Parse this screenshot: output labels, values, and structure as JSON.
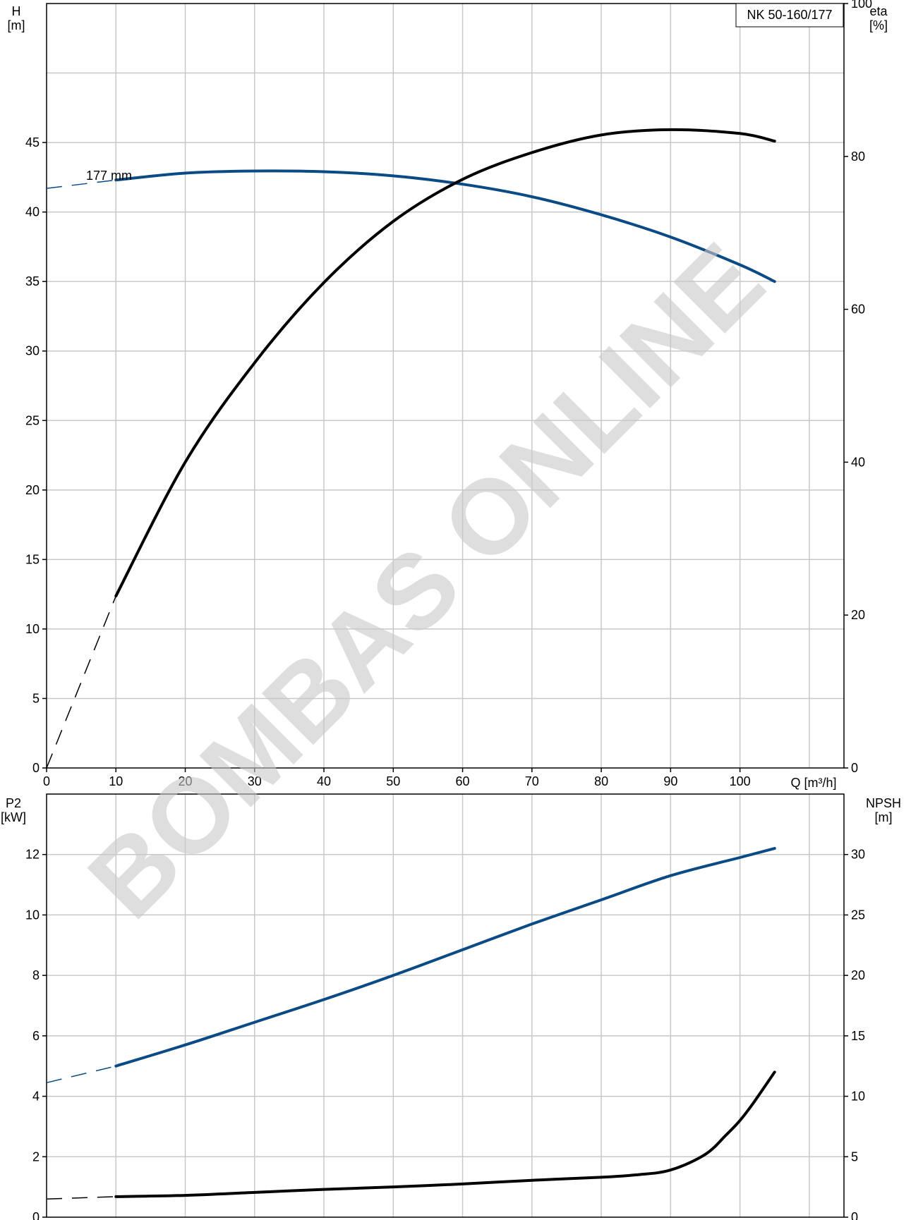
{
  "chart_data": [
    {
      "type": "line",
      "title": "NK 50-160/177",
      "xlabel": "Q [m³/h]",
      "ylabel_left_name": "H",
      "ylabel_left_unit": "[m]",
      "ylabel_right_name": "eta",
      "ylabel_right_unit": "[%]",
      "xlim": [
        0,
        115
      ],
      "ylim_left": [
        0,
        55
      ],
      "ylim_right": [
        0,
        100
      ],
      "x_ticks": [
        0,
        10,
        20,
        30,
        40,
        50,
        60,
        70,
        80,
        90,
        100
      ],
      "x_tick_labels": [
        "0",
        "10",
        "20",
        "30",
        "40",
        "50",
        "60",
        "70",
        "80",
        "90",
        "100"
      ],
      "y_left_ticks": [
        0,
        5,
        10,
        15,
        20,
        25,
        30,
        35,
        40,
        45
      ],
      "y_left_tick_labels": [
        "0",
        "5",
        "10",
        "15",
        "20",
        "25",
        "30",
        "35",
        "40",
        "45"
      ],
      "y_right_ticks": [
        0,
        20,
        40,
        60,
        80,
        100
      ],
      "y_right_tick_labels": [
        "0",
        "20",
        "40",
        "60",
        "80",
        "100"
      ],
      "grid": true,
      "annotation": "177 mm",
      "series": [
        {
          "axis": "left",
          "color": "#0a4a85",
          "x": [
            10,
            20,
            30,
            40,
            50,
            60,
            70,
            80,
            90,
            100,
            105
          ],
          "values": [
            42.3,
            42.8,
            42.95,
            42.9,
            42.6,
            42.0,
            41.1,
            39.8,
            38.2,
            36.2,
            35.0
          ],
          "extrapolated": {
            "x": [
              0,
              10
            ],
            "values": [
              41.7,
              42.3
            ]
          }
        },
        {
          "axis": "right",
          "color": "#000000",
          "x": [
            10,
            20,
            30,
            40,
            50,
            60,
            70,
            80,
            90,
            100,
            105
          ],
          "values": [
            22.5,
            40.0,
            53.0,
            63.5,
            71.5,
            77.0,
            80.5,
            82.8,
            83.5,
            83.0,
            82.0
          ],
          "extrapolated": {
            "x": [
              0,
              10
            ],
            "values": [
              0,
              22.5
            ]
          }
        }
      ]
    },
    {
      "type": "line",
      "ylabel_left_name": "P2",
      "ylabel_left_unit": "[kW]",
      "ylabel_right_name": "NPSH",
      "ylabel_right_unit": "[m]",
      "xlim": [
        0,
        115
      ],
      "ylim_left": [
        0,
        14
      ],
      "ylim_right": [
        0,
        35
      ],
      "y_left_ticks": [
        0,
        2,
        4,
        6,
        8,
        10,
        12
      ],
      "y_left_tick_labels": [
        "0",
        "2",
        "4",
        "6",
        "8",
        "10",
        "12"
      ],
      "y_right_ticks": [
        0,
        5,
        10,
        15,
        20,
        25,
        30
      ],
      "y_right_tick_labels": [
        "0",
        "5",
        "10",
        "15",
        "20",
        "25",
        "30"
      ],
      "grid": true,
      "series": [
        {
          "axis": "left",
          "color": "#0a4a85",
          "x": [
            10,
            20,
            30,
            40,
            50,
            60,
            70,
            80,
            90,
            100,
            105
          ],
          "values": [
            5.0,
            5.7,
            6.45,
            7.2,
            8.0,
            8.85,
            9.7,
            10.5,
            11.3,
            11.9,
            12.2
          ],
          "extrapolated": {
            "x": [
              0,
              10
            ],
            "values": [
              4.45,
              5.0
            ]
          }
        },
        {
          "axis": "right",
          "color": "#000000",
          "x": [
            10,
            20,
            30,
            40,
            50,
            60,
            70,
            80,
            85,
            90,
            95,
            98,
            100,
            102,
            105
          ],
          "values": [
            1.7,
            1.8,
            2.05,
            2.3,
            2.5,
            2.75,
            3.05,
            3.3,
            3.5,
            3.9,
            5.2,
            6.8,
            8.0,
            9.5,
            12.0
          ],
          "extrapolated": {
            "x": [
              0,
              10
            ],
            "values": [
              1.5,
              1.7
            ]
          }
        }
      ]
    }
  ],
  "watermark": "BOMBAS ONLINE"
}
